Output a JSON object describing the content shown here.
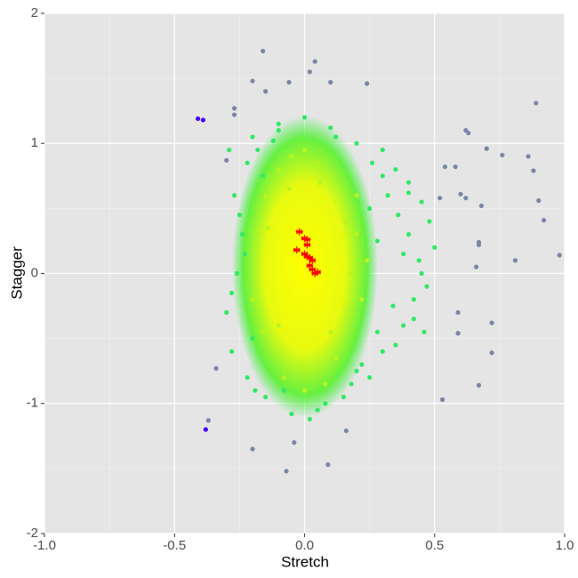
{
  "chart_data": {
    "type": "scatter",
    "x_label": "Stretch",
    "y_label": "Stagger",
    "xlim": [
      -1,
      1
    ],
    "ylim": [
      -2,
      2
    ],
    "xticks": [
      {
        "value": -1,
        "label": "-1.0"
      },
      {
        "value": -0.5,
        "label": "-0.5"
      },
      {
        "value": 0,
        "label": "0.0"
      },
      {
        "value": 0.5,
        "label": "0.5"
      },
      {
        "value": 1,
        "label": "1.0"
      }
    ],
    "yticks": [
      -2,
      -1,
      0,
      1,
      2
    ],
    "xminorticks": [
      -0.75,
      -0.25,
      0.25,
      0.75
    ],
    "yminorticks": [
      -1.5,
      -0.5,
      0.5,
      1.5
    ],
    "grid": true,
    "series": [
      {
        "color": "#7a86a8",
        "marker": "dot",
        "x": [
          -0.16,
          0.04,
          0.02,
          -0.2,
          -0.15,
          -0.06,
          0.1,
          0.24,
          0.62,
          0.63,
          0.7,
          0.76,
          0.89,
          0.86,
          0.88,
          0.54,
          0.58,
          0.6,
          0.62,
          0.52,
          0.68,
          0.9,
          0.92,
          0.98,
          0.81,
          0.67,
          0.67,
          0.66,
          0.72,
          0.72,
          0.67,
          0.53,
          0.59,
          0.59,
          -0.37,
          -0.2,
          -0.07,
          -0.04,
          0.09,
          -0.34,
          -0.27,
          -0.27,
          -0.3,
          0.16
        ],
        "values": [
          1.71,
          1.63,
          1.55,
          1.48,
          1.4,
          1.47,
          1.47,
          1.46,
          1.1,
          1.08,
          0.96,
          0.91,
          1.31,
          0.9,
          0.79,
          0.82,
          0.82,
          0.61,
          0.58,
          0.58,
          0.52,
          0.56,
          0.41,
          0.14,
          0.1,
          0.22,
          0.24,
          0.05,
          -0.38,
          -0.61,
          -0.86,
          -0.97,
          -0.3,
          -0.46,
          -1.13,
          -1.35,
          -1.52,
          -1.3,
          -1.47,
          -0.73,
          1.27,
          1.22,
          0.87,
          -1.21
        ]
      },
      {
        "color": "#4400ff",
        "marker": "dot",
        "x": [
          -0.41,
          -0.39,
          -0.38
        ],
        "values": [
          1.19,
          1.18,
          -1.2
        ]
      },
      {
        "color": "#33e866",
        "marker": "dot",
        "x": [
          -0.2,
          -0.1,
          0.0,
          0.1,
          0.2,
          0.3,
          0.35,
          0.4,
          0.45,
          0.48,
          0.5,
          0.45,
          0.42,
          0.38,
          0.3,
          0.25,
          0.15,
          0.05,
          -0.05,
          -0.15,
          -0.22,
          -0.28,
          -0.3,
          -0.26,
          -0.24,
          -0.27,
          -0.22,
          -0.18,
          -0.12,
          0.32,
          0.36,
          0.4,
          0.44,
          0.47,
          0.28,
          0.22,
          0.18,
          -0.2,
          -0.25,
          -0.16,
          0.12,
          0.08,
          -0.08,
          0.26,
          0.34,
          0.38,
          0.42,
          0.3,
          -0.28,
          -0.23,
          0.2,
          0.35,
          -0.1,
          0.02,
          0.28,
          0.4,
          0.46,
          -0.19,
          -0.29,
          0.25
        ],
        "values": [
          1.05,
          1.15,
          1.2,
          1.12,
          1.0,
          0.95,
          0.8,
          0.7,
          0.55,
          0.4,
          0.2,
          0.0,
          -0.2,
          -0.4,
          -0.6,
          -0.8,
          -0.95,
          -1.05,
          -1.08,
          -0.95,
          -0.8,
          -0.6,
          -0.3,
          0.0,
          0.3,
          0.6,
          0.85,
          0.95,
          1.02,
          0.6,
          0.45,
          0.3,
          0.1,
          -0.1,
          -0.45,
          -0.7,
          -0.85,
          -0.5,
          0.45,
          0.75,
          1.05,
          -1.0,
          -0.9,
          0.85,
          -0.25,
          0.15,
          -0.35,
          0.75,
          -0.15,
          0.15,
          -0.75,
          -0.55,
          1.1,
          -1.12,
          0.25,
          0.62,
          -0.45,
          -0.9,
          0.95,
          0.5
        ]
      },
      {
        "color": "#b8f520",
        "marker": "dot",
        "x": [
          -0.15,
          -0.1,
          -0.05,
          0.0,
          0.05,
          0.1,
          0.15,
          0.2,
          -0.12,
          0.12,
          -0.18,
          0.18,
          0.22,
          -0.2,
          0.08,
          -0.08,
          0.0,
          0.16,
          -0.14,
          0.2,
          -0.06,
          0.06,
          0.1,
          -0.1,
          0.24,
          -0.16
        ],
        "values": [
          0.6,
          0.8,
          0.9,
          0.95,
          0.85,
          0.75,
          0.55,
          0.3,
          -0.55,
          -0.65,
          0.1,
          0.0,
          -0.2,
          -0.2,
          -0.85,
          -0.8,
          -0.9,
          0.4,
          0.35,
          0.6,
          0.65,
          0.7,
          -0.45,
          -0.4,
          0.1,
          -0.45
        ]
      },
      {
        "color": "#ff0000",
        "marker": "star",
        "x": [
          -0.02,
          0.0,
          -0.03,
          0.01,
          0.0,
          0.01,
          0.02,
          0.03,
          0.02,
          0.03,
          0.04,
          0.05,
          0.01
        ],
        "values": [
          0.32,
          0.27,
          0.18,
          0.22,
          0.15,
          0.13,
          0.12,
          0.1,
          0.06,
          0.03,
          0.0,
          0.01,
          0.26
        ]
      }
    ]
  }
}
